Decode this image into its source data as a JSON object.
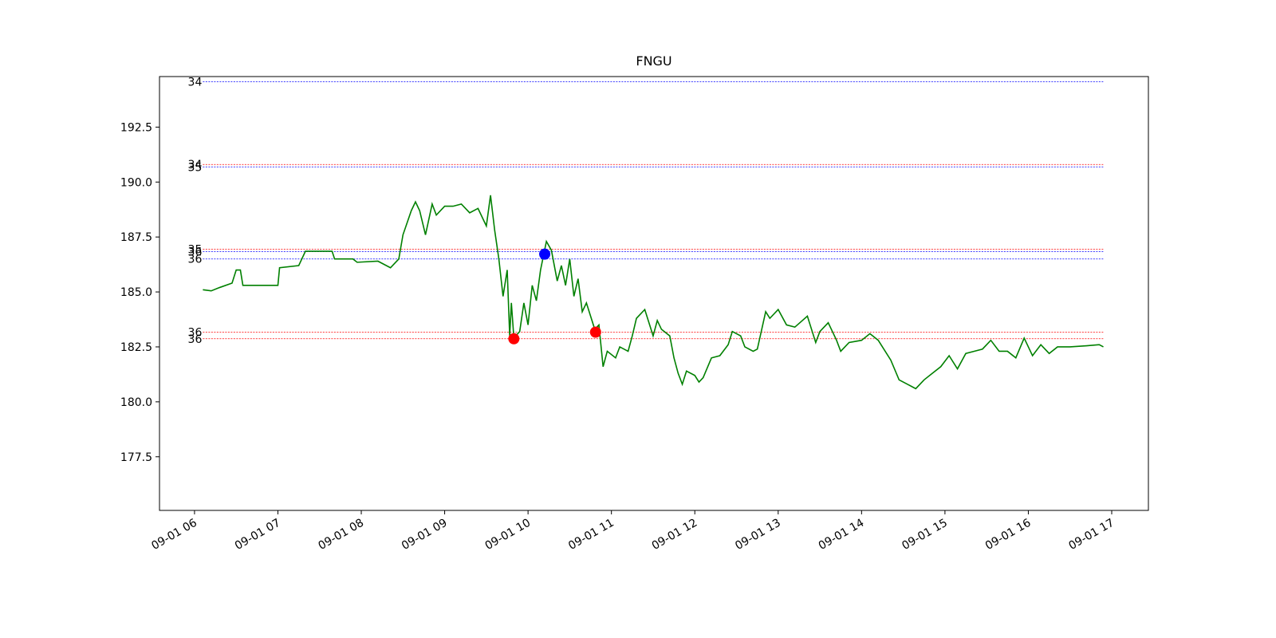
{
  "chart_data": {
    "type": "line",
    "title": "FNGU",
    "x": [
      6.1,
      6.2,
      6.3,
      6.45,
      6.5,
      6.55,
      6.58,
      7.0,
      7.02,
      7.25,
      7.33,
      7.65,
      7.68,
      7.9,
      7.95,
      8.2,
      8.35,
      8.45,
      8.5,
      8.6,
      8.65,
      8.7,
      8.77,
      8.85,
      8.9,
      9.0,
      9.1,
      9.2,
      9.3,
      9.4,
      9.45,
      9.5,
      9.55,
      9.6,
      9.65,
      9.7,
      9.75,
      9.78,
      9.8,
      9.83,
      9.9,
      9.95,
      10.0,
      10.05,
      10.1,
      10.15,
      10.22,
      10.28,
      10.35,
      10.4,
      10.45,
      10.5,
      10.55,
      10.6,
      10.65,
      10.7,
      10.75,
      10.8,
      10.85,
      10.9,
      10.95,
      11.05,
      11.1,
      11.2,
      11.25,
      11.3,
      11.4,
      11.45,
      11.5,
      11.55,
      11.6,
      11.7,
      11.75,
      11.8,
      11.85,
      11.9,
      12.0,
      12.05,
      12.1,
      12.2,
      12.3,
      12.4,
      12.45,
      12.55,
      12.6,
      12.7,
      12.75,
      12.85,
      12.9,
      13.0,
      13.1,
      13.2,
      13.35,
      13.45,
      13.5,
      13.6,
      13.7,
      13.75,
      13.85,
      14.0,
      14.1,
      14.2,
      14.35,
      14.45,
      14.55,
      14.65,
      14.75,
      14.85,
      14.95,
      15.05,
      15.15,
      15.25,
      15.35,
      15.45,
      15.55,
      15.65,
      15.75,
      15.85,
      15.95,
      16.0,
      16.05,
      16.15,
      16.25,
      16.35,
      16.5,
      16.7,
      16.85,
      16.9
    ],
    "values": [
      185.1,
      185.05,
      185.2,
      185.4,
      186.0,
      186.0,
      185.3,
      185.3,
      186.1,
      186.2,
      186.85,
      186.85,
      186.5,
      186.5,
      186.35,
      186.4,
      186.1,
      186.5,
      187.6,
      188.7,
      189.1,
      188.7,
      187.6,
      189.0,
      188.5,
      188.9,
      188.9,
      189.0,
      188.6,
      188.8,
      188.4,
      188.0,
      189.4,
      187.8,
      186.5,
      184.8,
      186.0,
      183.0,
      184.5,
      182.9,
      183.2,
      184.5,
      183.5,
      185.3,
      184.6,
      186.0,
      187.3,
      186.9,
      185.5,
      186.2,
      185.3,
      186.5,
      184.8,
      185.6,
      184.1,
      184.5,
      183.9,
      183.3,
      183.5,
      181.6,
      182.3,
      182.0,
      182.5,
      182.3,
      183.0,
      183.8,
      184.2,
      183.6,
      183.0,
      183.7,
      183.3,
      183.0,
      182.0,
      181.3,
      180.8,
      181.4,
      181.2,
      180.9,
      181.1,
      182.0,
      182.1,
      182.6,
      183.2,
      183.0,
      182.5,
      182.3,
      182.4,
      184.1,
      183.8,
      184.2,
      183.5,
      183.4,
      183.9,
      182.7,
      183.2,
      183.6,
      182.8,
      182.3,
      182.7,
      182.8,
      183.1,
      182.8,
      181.9,
      181.0,
      180.8,
      180.6,
      181.0,
      181.3,
      181.6,
      182.1,
      181.5,
      182.2,
      182.3,
      182.4,
      182.8,
      182.3,
      182.3,
      182.0,
      182.9,
      182.5,
      182.1,
      182.6,
      182.2,
      182.5,
      182.5,
      182.55,
      182.6,
      182.5
    ],
    "color": "green",
    "markers": [
      {
        "x": 9.83,
        "y": 182.87,
        "color": "red"
      },
      {
        "x": 10.2,
        "y": 186.72,
        "color": "blue"
      },
      {
        "x": 10.81,
        "y": 183.17,
        "color": "red"
      }
    ],
    "levels": [
      {
        "y": 194.57,
        "text": "34",
        "color": "blue"
      },
      {
        "y": 190.8,
        "text": "34",
        "color": "red"
      },
      {
        "y": 190.69,
        "text": "35",
        "color": "blue"
      },
      {
        "y": 186.94,
        "text": "35",
        "color": "red"
      },
      {
        "y": 186.83,
        "text": "36",
        "color": "blue"
      },
      {
        "y": 186.5,
        "text": "36",
        "color": "blue"
      },
      {
        "y": 183.17,
        "text": "36",
        "color": "red"
      },
      {
        "y": 182.87,
        "text": "36",
        "color": "red"
      }
    ],
    "xlim": [
      5.58,
      17.44
    ],
    "ylim": [
      175.06,
      194.8
    ],
    "xticks": [
      {
        "value": 6,
        "label": "09-01 06"
      },
      {
        "value": 7,
        "label": "09-01 07"
      },
      {
        "value": 8,
        "label": "09-01 08"
      },
      {
        "value": 9,
        "label": "09-01 09"
      },
      {
        "value": 10,
        "label": "09-01 10"
      },
      {
        "value": 11,
        "label": "09-01 11"
      },
      {
        "value": 12,
        "label": "09-01 12"
      },
      {
        "value": 13,
        "label": "09-01 13"
      },
      {
        "value": 14,
        "label": "09-01 14"
      },
      {
        "value": 15,
        "label": "09-01 15"
      },
      {
        "value": 16,
        "label": "09-01 16"
      },
      {
        "value": 17,
        "label": "09-01 17"
      }
    ],
    "yticks": [
      177.5,
      {
        "value": 180,
        "label": "180.0"
      },
      182.5,
      {
        "value": 185,
        "label": "185.0"
      },
      187.5,
      {
        "value": 190,
        "label": "190.0"
      },
      192.5
    ]
  }
}
